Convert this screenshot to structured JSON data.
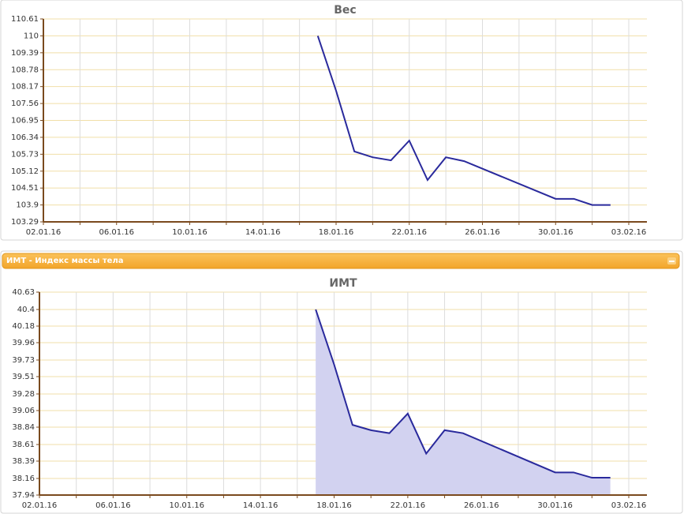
{
  "panel": {
    "title": "ИМТ - Индекс массы тела"
  },
  "chart_data": [
    {
      "type": "line",
      "title": "Вес",
      "color": "#2a2a9c",
      "x": [
        "17.01.16",
        "18.01.16",
        "19.01.16",
        "20.01.16",
        "21.01.16",
        "22.01.16",
        "23.01.16",
        "24.01.16",
        "25.01.16",
        "30.01.16",
        "31.01.16",
        "01.02.16",
        "02.02.16"
      ],
      "values": [
        110,
        108.02,
        105.83,
        105.62,
        105.51,
        106.22,
        104.8,
        105.62,
        105.48,
        104.12,
        104.12,
        103.9,
        103.9
      ],
      "xlim": [
        "02.01.16",
        "03.02.16"
      ],
      "xticks": [
        "02.01.16",
        "06.01.16",
        "10.01.16",
        "14.01.16",
        "18.01.16",
        "22.01.16",
        "26.01.16",
        "30.01.16",
        "03.02.16"
      ],
      "ylim": [
        103.29,
        110.61
      ],
      "yticks": [
        103.29,
        103.9,
        104.51,
        105.12,
        105.73,
        106.34,
        106.95,
        107.56,
        108.17,
        108.78,
        109.39,
        110,
        110.61
      ],
      "grid": true
    },
    {
      "type": "area",
      "title": "ИМТ",
      "color": "#2a2a9c",
      "fill": "#d2d2f0",
      "x": [
        "17.01.16",
        "18.01.16",
        "19.01.16",
        "20.01.16",
        "21.01.16",
        "22.01.16",
        "23.01.16",
        "24.01.16",
        "25.01.16",
        "30.01.16",
        "31.01.16",
        "01.02.16",
        "02.02.16"
      ],
      "values": [
        40.4,
        39.67,
        38.87,
        38.8,
        38.76,
        39.02,
        38.49,
        38.8,
        38.76,
        38.24,
        38.24,
        38.17,
        38.17
      ],
      "xlim": [
        "02.01.16",
        "03.02.16"
      ],
      "xticks": [
        "02.01.16",
        "06.01.16",
        "10.01.16",
        "14.01.16",
        "18.01.16",
        "22.01.16",
        "26.01.16",
        "30.01.16",
        "03.02.16"
      ],
      "ylim": [
        37.94,
        40.63
      ],
      "yticks": [
        37.94,
        38.16,
        38.39,
        38.61,
        38.84,
        39.06,
        39.28,
        39.51,
        39.73,
        39.96,
        40.18,
        40.4,
        40.63
      ],
      "grid": true
    }
  ]
}
